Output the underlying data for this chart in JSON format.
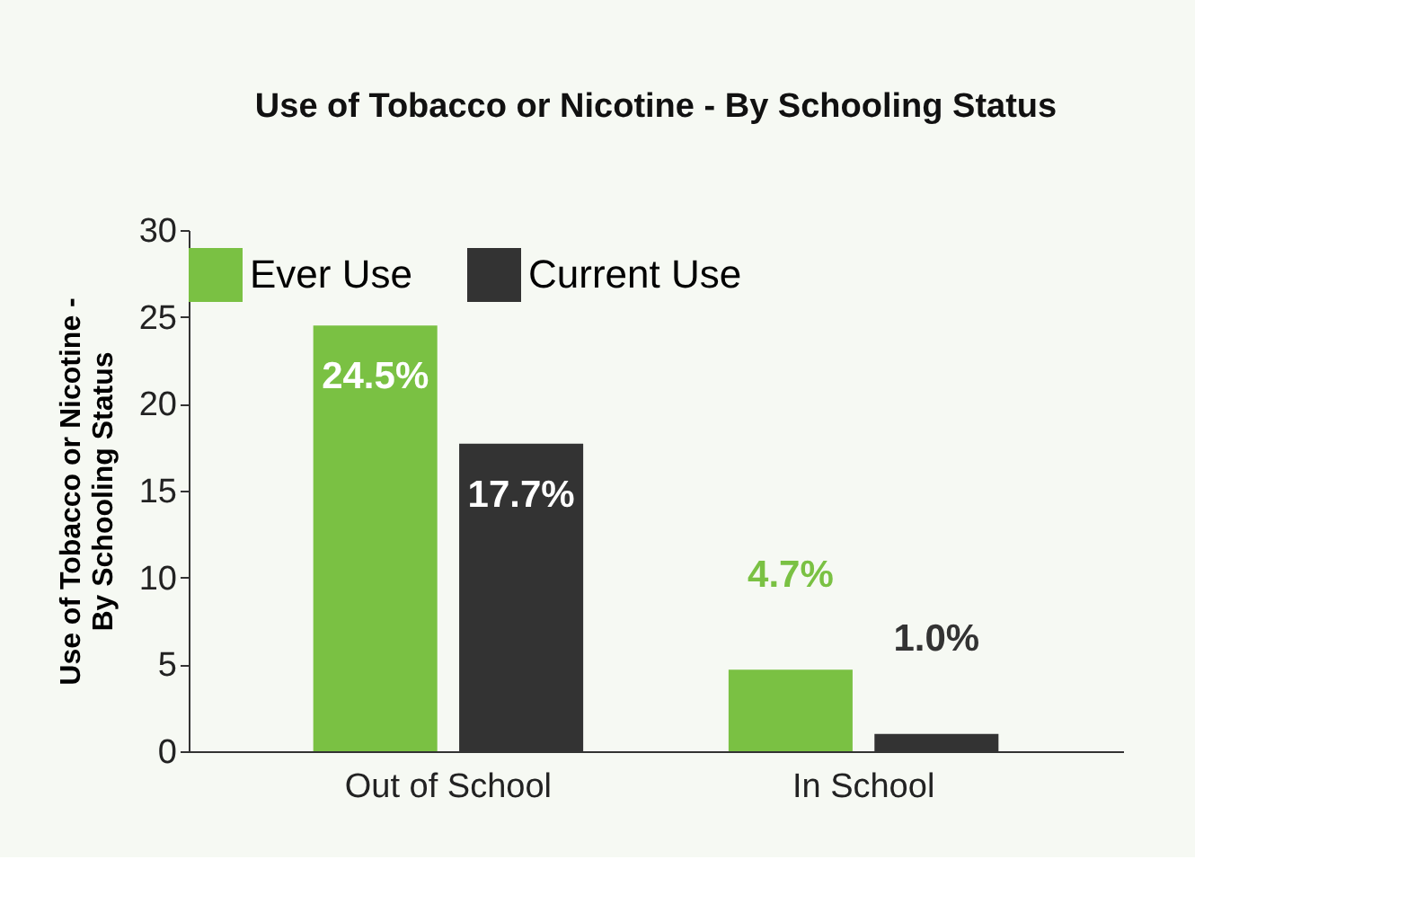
{
  "chart_data": {
    "type": "bar",
    "title": "Use of Tobacco or Nicotine - By Schooling Status",
    "ylabel": "Use of Tobacco or Nicotine - By Schooling Status",
    "categories": [
      "Out of School",
      "In School"
    ],
    "series": [
      {
        "name": "Ever Use",
        "color": "#7ac143",
        "values": [
          24.5,
          4.7
        ],
        "value_labels": [
          "24.5%",
          "4.7%"
        ]
      },
      {
        "name": "Current Use",
        "color": "#333333",
        "values": [
          17.7,
          1.0
        ],
        "value_labels": [
          "17.7%",
          "1.0%"
        ]
      }
    ],
    "ylim": [
      0,
      30
    ],
    "yticks": [
      0,
      5,
      10,
      15,
      20,
      25,
      30
    ],
    "grid": false,
    "legend": "top"
  }
}
